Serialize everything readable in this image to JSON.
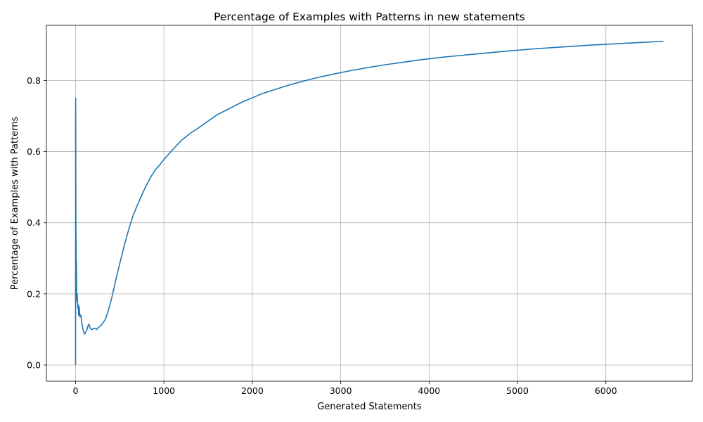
{
  "chart_data": {
    "type": "line",
    "title": "Percentage of Examples with Patterns in new statements",
    "xlabel": "Generated Statements",
    "ylabel": "Percentage of Examples with Patterns",
    "xlim": [
      -330,
      6980
    ],
    "ylim": [
      -0.0455,
      0.955
    ],
    "xticks": [
      0,
      1000,
      2000,
      3000,
      4000,
      5000,
      6000
    ],
    "yticks": [
      0.0,
      0.2,
      0.4,
      0.6,
      0.8
    ],
    "ytick_labels": [
      "0.0",
      "0.2",
      "0.4",
      "0.6",
      "0.8"
    ],
    "grid": true,
    "series": [
      {
        "color": "#1f77b4",
        "x": [
          0,
          1,
          2,
          3,
          4,
          6,
          8,
          10,
          12,
          15,
          18,
          22,
          26,
          30,
          35,
          40,
          45,
          50,
          60,
          70,
          80,
          90,
          100,
          110,
          120,
          130,
          140,
          150,
          160,
          170,
          180,
          190,
          200,
          220,
          240,
          260,
          280,
          300,
          320,
          340,
          360,
          380,
          400,
          420,
          440,
          460,
          480,
          500,
          550,
          600,
          650,
          700,
          750,
          800,
          850,
          900,
          950,
          1000,
          1100,
          1200,
          1300,
          1400,
          1500,
          1600,
          1700,
          1800,
          1900,
          2000,
          2100,
          2200,
          2300,
          2400,
          2500,
          2700,
          2900,
          3100,
          3300,
          3500,
          3700,
          3900,
          4100,
          4300,
          4600,
          4900,
          5200,
          5500,
          5800,
          6100,
          6400,
          6650
        ],
        "y": [
          0.0,
          0.75,
          0.667,
          0.5,
          0.4,
          0.333,
          0.25,
          0.29,
          0.21,
          0.18,
          0.2,
          0.18,
          0.16,
          0.17,
          0.14,
          0.165,
          0.15,
          0.135,
          0.14,
          0.12,
          0.105,
          0.095,
          0.087,
          0.09,
          0.095,
          0.1,
          0.11,
          0.115,
          0.108,
          0.102,
          0.1,
          0.1,
          0.102,
          0.103,
          0.1,
          0.106,
          0.11,
          0.115,
          0.122,
          0.13,
          0.145,
          0.162,
          0.18,
          0.2,
          0.222,
          0.245,
          0.265,
          0.285,
          0.335,
          0.38,
          0.42,
          0.45,
          0.478,
          0.505,
          0.528,
          0.548,
          0.562,
          0.578,
          0.606,
          0.632,
          0.652,
          0.668,
          0.686,
          0.703,
          0.716,
          0.729,
          0.741,
          0.751,
          0.762,
          0.77,
          0.778,
          0.786,
          0.793,
          0.806,
          0.817,
          0.827,
          0.836,
          0.844,
          0.851,
          0.858,
          0.864,
          0.869,
          0.876,
          0.883,
          0.889,
          0.894,
          0.899,
          0.903,
          0.907,
          0.91
        ]
      }
    ]
  }
}
